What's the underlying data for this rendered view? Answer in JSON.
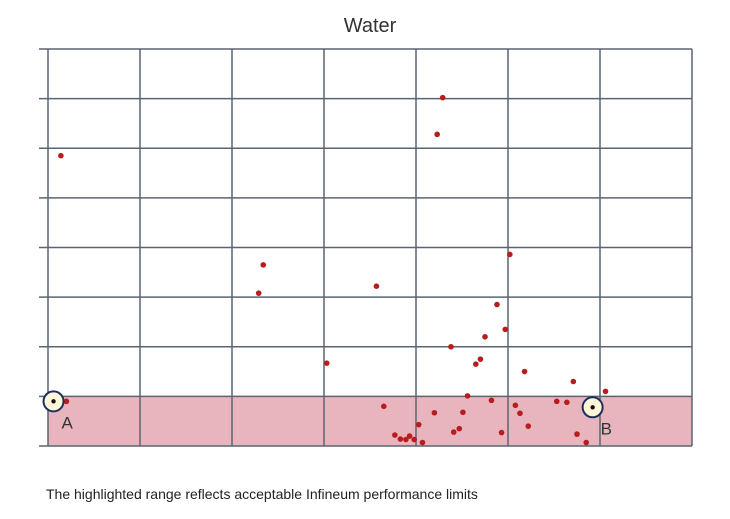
{
  "chart_data": {
    "type": "scatter",
    "title": "Water",
    "xlabel": "",
    "ylabel": "",
    "xlim": [
      0,
      7
    ],
    "ylim": [
      0,
      8
    ],
    "grid": true,
    "highlight_band": {
      "y_from": 0,
      "y_to": 1,
      "color": "#e8b4bd"
    },
    "points": [
      {
        "x": 0.14,
        "y": 5.85
      },
      {
        "x": 0.2,
        "y": 0.9
      },
      {
        "x": 2.34,
        "y": 3.65
      },
      {
        "x": 2.29,
        "y": 3.08
      },
      {
        "x": 3.03,
        "y": 1.67
      },
      {
        "x": 3.57,
        "y": 3.22
      },
      {
        "x": 3.65,
        "y": 0.8
      },
      {
        "x": 3.77,
        "y": 0.22
      },
      {
        "x": 3.83,
        "y": 0.14
      },
      {
        "x": 3.89,
        "y": 0.13
      },
      {
        "x": 3.93,
        "y": 0.2
      },
      {
        "x": 3.98,
        "y": 0.13
      },
      {
        "x": 4.03,
        "y": 0.43
      },
      {
        "x": 4.07,
        "y": 0.07
      },
      {
        "x": 4.2,
        "y": 0.67
      },
      {
        "x": 4.23,
        "y": 6.28
      },
      {
        "x": 4.29,
        "y": 7.02
      },
      {
        "x": 4.38,
        "y": 2.0
      },
      {
        "x": 4.41,
        "y": 0.28
      },
      {
        "x": 4.47,
        "y": 0.35
      },
      {
        "x": 4.51,
        "y": 0.68
      },
      {
        "x": 4.56,
        "y": 1.01
      },
      {
        "x": 4.65,
        "y": 1.65
      },
      {
        "x": 4.7,
        "y": 1.75
      },
      {
        "x": 4.75,
        "y": 2.2
      },
      {
        "x": 4.82,
        "y": 0.92
      },
      {
        "x": 4.88,
        "y": 2.85
      },
      {
        "x": 4.93,
        "y": 0.27
      },
      {
        "x": 4.97,
        "y": 2.35
      },
      {
        "x": 5.02,
        "y": 3.86
      },
      {
        "x": 5.08,
        "y": 0.82
      },
      {
        "x": 5.13,
        "y": 0.66
      },
      {
        "x": 5.18,
        "y": 1.5
      },
      {
        "x": 5.22,
        "y": 0.4
      },
      {
        "x": 5.53,
        "y": 0.9
      },
      {
        "x": 5.64,
        "y": 0.88
      },
      {
        "x": 5.71,
        "y": 1.3
      },
      {
        "x": 5.75,
        "y": 0.24
      },
      {
        "x": 5.85,
        "y": 0.07
      },
      {
        "x": 5.97,
        "y": 0.81
      },
      {
        "x": 6.06,
        "y": 1.1
      }
    ],
    "markers": [
      {
        "label": "A",
        "x": 0.06,
        "y": 0.9
      },
      {
        "label": "B",
        "x": 5.92,
        "y": 0.78
      }
    ],
    "point_color": "#b81c1c"
  },
  "footnote": "The highlighted range reflects acceptable Infineum performance limits"
}
